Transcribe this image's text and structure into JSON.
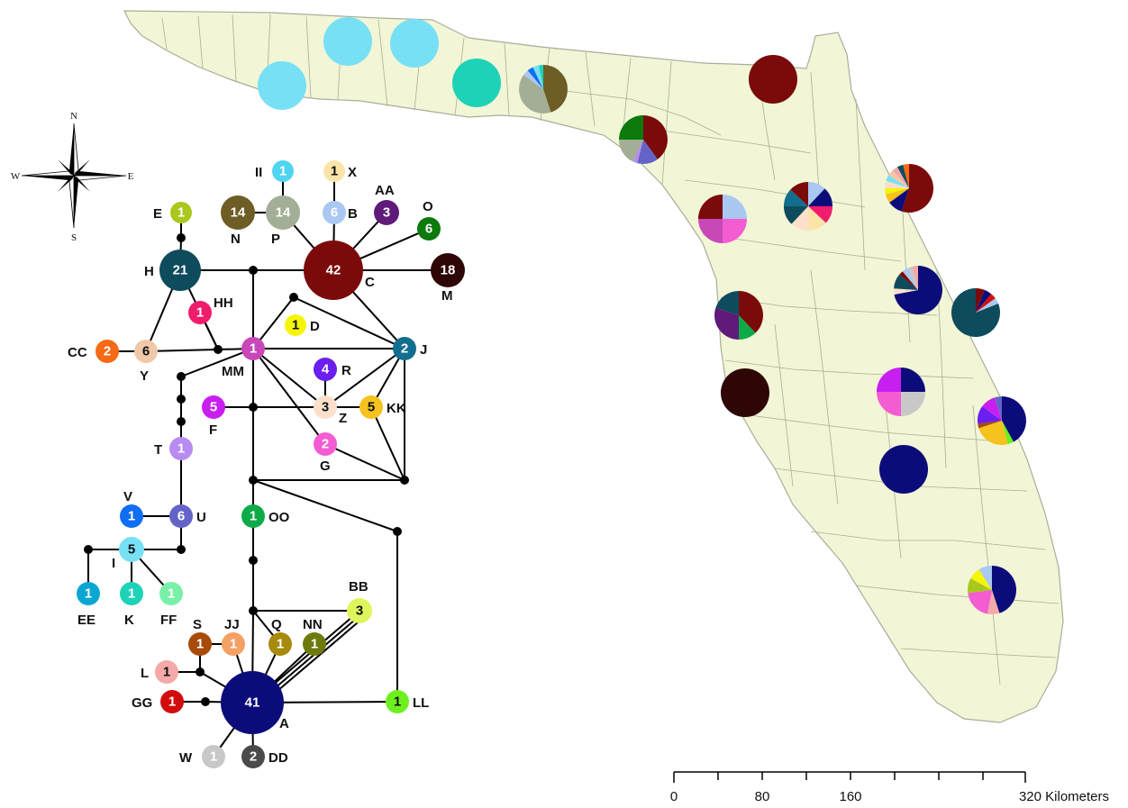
{
  "colors": {
    "land": "#f2f6d6",
    "border": "#a8ae9a",
    "edge": "#000000"
  },
  "compass": {
    "n": "N",
    "s": "S",
    "e": "E",
    "w": "W"
  },
  "scale_bar": {
    "ticks": [
      "0",
      "80",
      "160",
      "320 Kilometers"
    ],
    "values_km": [
      0,
      80,
      160,
      320
    ]
  },
  "haplotypes": [
    {
      "id": "A",
      "count": "41",
      "color": "#0b0b7a",
      "text": "#ffffff"
    },
    {
      "id": "C",
      "count": "42",
      "color": "#7b0a0a",
      "text": "#ffffff"
    },
    {
      "id": "H",
      "count": "21",
      "color": "#0e4b5c",
      "text": "#ffffff"
    },
    {
      "id": "M",
      "count": "18",
      "color": "#2e0606",
      "text": "#ffffff"
    },
    {
      "id": "N",
      "count": "14",
      "color": "#6e5e26",
      "text": "#ffffff"
    },
    {
      "id": "P",
      "count": "14",
      "color": "#a3ae97",
      "text": "#ffffff"
    },
    {
      "id": "II",
      "count": "1",
      "color": "#4fd4f2",
      "text": "#ffffff"
    },
    {
      "id": "X",
      "count": "1",
      "color": "#fbe4a9",
      "text": "#111111"
    },
    {
      "id": "B",
      "count": "6",
      "color": "#a9c8f2",
      "text": "#ffffff"
    },
    {
      "id": "AA",
      "count": "3",
      "color": "#5f1a7a",
      "text": "#ffffff"
    },
    {
      "id": "O",
      "count": "6",
      "color": "#0c7a0c",
      "text": "#ffffff"
    },
    {
      "id": "E",
      "count": "1",
      "color": "#a8c81e",
      "text": "#ffffff"
    },
    {
      "id": "HH",
      "count": "1",
      "color": "#f01c6e",
      "text": "#ffffff"
    },
    {
      "id": "D",
      "count": "1",
      "color": "#f5f50a",
      "text": "#111111"
    },
    {
      "id": "CC",
      "count": "2",
      "color": "#f56a14",
      "text": "#ffffff"
    },
    {
      "id": "Y",
      "count": "6",
      "color": "#f0c8a8",
      "text": "#111111"
    },
    {
      "id": "MM",
      "count": "1",
      "color": "#c848b8",
      "text": "#ffffff"
    },
    {
      "id": "J",
      "count": "2",
      "color": "#126e8e",
      "text": "#ffffff"
    },
    {
      "id": "R",
      "count": "4",
      "color": "#6a1ef0",
      "text": "#ffffff"
    },
    {
      "id": "F",
      "count": "5",
      "color": "#c81ef0",
      "text": "#ffffff"
    },
    {
      "id": "Z",
      "count": "3",
      "color": "#fce0cc",
      "text": "#111111"
    },
    {
      "id": "KK",
      "count": "5",
      "color": "#f5c21e",
      "text": "#111111"
    },
    {
      "id": "G",
      "count": "2",
      "color": "#f45cd2",
      "text": "#ffffff"
    },
    {
      "id": "T",
      "count": "1",
      "color": "#b88af2",
      "text": "#ffffff"
    },
    {
      "id": "V",
      "count": "1",
      "color": "#0f6ef2",
      "text": "#ffffff"
    },
    {
      "id": "U",
      "count": "6",
      "color": "#6464c8",
      "text": "#ffffff"
    },
    {
      "id": "I",
      "count": "5",
      "color": "#78e0f5",
      "text": "#111111"
    },
    {
      "id": "EE",
      "count": "1",
      "color": "#0aa6d2",
      "text": "#ffffff"
    },
    {
      "id": "K",
      "count": "1",
      "color": "#1ed2b8",
      "text": "#ffffff"
    },
    {
      "id": "FF",
      "count": "1",
      "color": "#78f0a8",
      "text": "#ffffff"
    },
    {
      "id": "OO",
      "count": "1",
      "color": "#0caa48",
      "text": "#ffffff"
    },
    {
      "id": "BB",
      "count": "3",
      "color": "#e0f55c",
      "text": "#111111"
    },
    {
      "id": "S",
      "count": "1",
      "color": "#a84a0c",
      "text": "#ffffff"
    },
    {
      "id": "JJ",
      "count": "1",
      "color": "#f5a064",
      "text": "#ffffff"
    },
    {
      "id": "Q",
      "count": "1",
      "color": "#a88a0c",
      "text": "#ffffff"
    },
    {
      "id": "NN",
      "count": "1",
      "color": "#6e7a0c",
      "text": "#ffffff"
    },
    {
      "id": "L",
      "count": "1",
      "color": "#f5a8a8",
      "text": "#111111"
    },
    {
      "id": "GG",
      "count": "1",
      "color": "#d20c0c",
      "text": "#ffffff"
    },
    {
      "id": "LL",
      "count": "1",
      "color": "#6ef01e",
      "text": "#111111"
    },
    {
      "id": "W",
      "count": "1",
      "color": "#c8c8c8",
      "text": "#ffffff"
    },
    {
      "id": "DD",
      "count": "2",
      "color": "#4a4a4a",
      "text": "#ffffff"
    }
  ],
  "map_sites": [
    {
      "slices": [
        {
          "h": "I",
          "f": 1
        }
      ]
    },
    {
      "slices": [
        {
          "h": "I",
          "f": 1
        }
      ]
    },
    {
      "slices": [
        {
          "h": "I",
          "f": 1
        }
      ]
    },
    {
      "slices": [
        {
          "h": "K",
          "f": 1
        }
      ]
    },
    {
      "slices": [
        {
          "h": "N",
          "f": 0.45
        },
        {
          "h": "P",
          "f": 0.4
        },
        {
          "h": "B",
          "f": 0.04
        },
        {
          "h": "V",
          "f": 0.04
        },
        {
          "h": "I",
          "f": 0.04
        },
        {
          "h": "K",
          "f": 0.03
        }
      ]
    },
    {
      "slices": [
        {
          "h": "C",
          "f": 1
        }
      ]
    },
    {
      "slices": [
        {
          "h": "C",
          "f": 0.4
        },
        {
          "h": "U",
          "f": 0.14
        },
        {
          "h": "T",
          "f": 0.03
        },
        {
          "h": "P",
          "f": 0.18
        },
        {
          "h": "O",
          "f": 0.25
        }
      ]
    },
    {
      "slices": [
        {
          "h": "B",
          "f": 0.25
        },
        {
          "h": "G",
          "f": 0.25
        },
        {
          "h": "MM",
          "f": 0.25
        },
        {
          "h": "C",
          "f": 0.25
        }
      ]
    },
    {
      "slices": [
        {
          "h": "B",
          "f": 0.12
        },
        {
          "h": "A",
          "f": 0.13
        },
        {
          "h": "HH",
          "f": 0.12
        },
        {
          "h": "X",
          "f": 0.13
        },
        {
          "h": "Z",
          "f": 0.12
        },
        {
          "h": "H",
          "f": 0.13
        },
        {
          "h": "J",
          "f": 0.12
        },
        {
          "h": "C",
          "f": 0.13
        }
      ]
    },
    {
      "slices": [
        {
          "h": "C",
          "f": 0.55
        },
        {
          "h": "A",
          "f": 0.1
        },
        {
          "h": "KK",
          "f": 0.06
        },
        {
          "h": "D",
          "f": 0.04
        },
        {
          "h": "Z",
          "f": 0.05
        },
        {
          "h": "I",
          "f": 0.04
        },
        {
          "h": "Y",
          "f": 0.04
        },
        {
          "h": "L",
          "f": 0.04
        },
        {
          "h": "H",
          "f": 0.04
        },
        {
          "h": "CC",
          "f": 0.04
        }
      ]
    },
    {
      "slices": [
        {
          "h": "C",
          "f": 0.38
        },
        {
          "h": "OO",
          "f": 0.12
        },
        {
          "h": "AA",
          "f": 0.3
        },
        {
          "h": "H",
          "f": 0.2
        }
      ]
    },
    {
      "slices": [
        {
          "h": "A",
          "f": 0.72
        },
        {
          "h": "Z",
          "f": 0.04
        },
        {
          "h": "H",
          "f": 0.1
        },
        {
          "h": "C",
          "f": 0.03
        },
        {
          "h": "B",
          "f": 0.04
        },
        {
          "h": "W",
          "f": 0.03
        },
        {
          "h": "L",
          "f": 0.04
        }
      ]
    },
    {
      "slices": [
        {
          "h": "C",
          "f": 0.06
        },
        {
          "h": "A",
          "f": 0.05
        },
        {
          "h": "GG",
          "f": 0.04
        },
        {
          "h": "B",
          "f": 0.04
        },
        {
          "h": "H",
          "f": 0.81
        }
      ]
    },
    {
      "slices": [
        {
          "h": "M",
          "f": 1
        }
      ]
    },
    {
      "slices": [
        {
          "h": "A",
          "f": 0.25
        },
        {
          "h": "W",
          "f": 0.25
        },
        {
          "h": "G",
          "f": 0.25
        },
        {
          "h": "F",
          "f": 0.25
        }
      ]
    },
    {
      "slices": [
        {
          "h": "A",
          "f": 0.42
        },
        {
          "h": "LL",
          "f": 0.04
        },
        {
          "h": "KK",
          "f": 0.24
        },
        {
          "h": "S",
          "f": 0.03
        },
        {
          "h": "R",
          "f": 0.12
        },
        {
          "h": "F",
          "f": 0.1
        },
        {
          "h": "U",
          "f": 0.05
        }
      ]
    },
    {
      "slices": [
        {
          "h": "A",
          "f": 1
        }
      ]
    },
    {
      "slices": [
        {
          "h": "A",
          "f": 0.45
        },
        {
          "h": "L",
          "f": 0.08
        },
        {
          "h": "G",
          "f": 0.2
        },
        {
          "h": "E",
          "f": 0.1
        },
        {
          "h": "D",
          "f": 0.08
        },
        {
          "h": "B",
          "f": 0.09
        }
      ]
    }
  ]
}
